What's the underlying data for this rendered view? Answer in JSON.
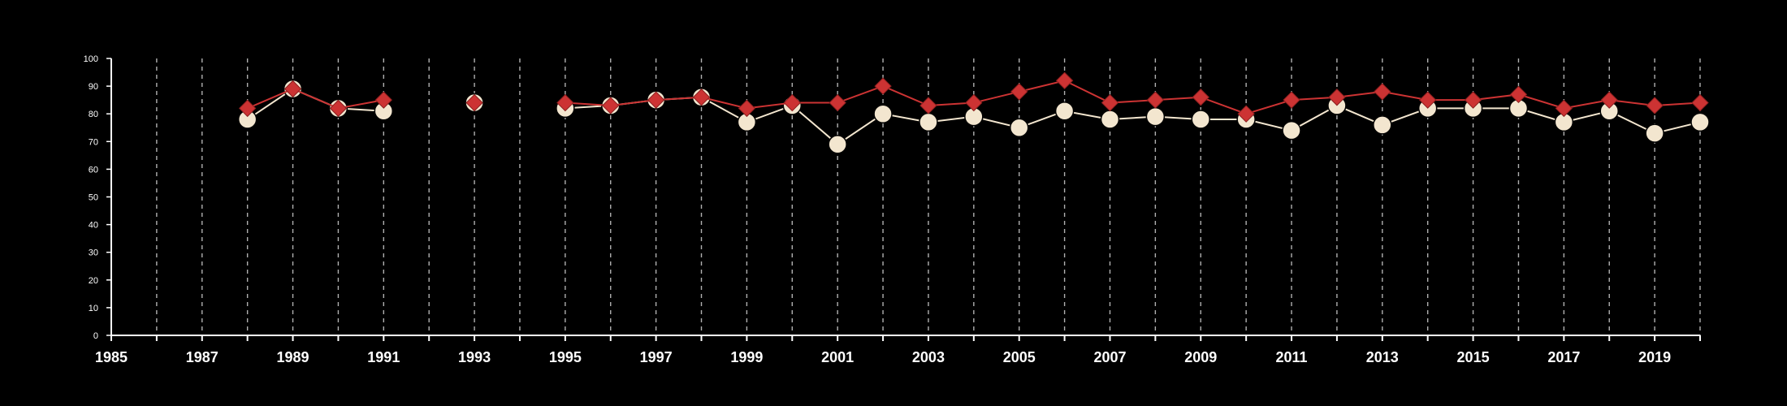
{
  "chart_data": {
    "type": "line",
    "title": "",
    "xlabel": "",
    "ylabel": "",
    "xlim": [
      1985,
      2020
    ],
    "ylim": [
      0,
      100
    ],
    "x_ticks": [
      1985,
      1987,
      1989,
      1991,
      1993,
      1995,
      1997,
      1999,
      2001,
      2003,
      2005,
      2007,
      2009,
      2011,
      2013,
      2015,
      2017,
      2019
    ],
    "y_ticks": [
      0,
      10,
      20,
      30,
      40,
      50,
      60,
      70,
      80,
      90,
      100
    ],
    "grid": "vertical-dashed",
    "legend": "none",
    "x": [
      1985,
      1986,
      1987,
      1988,
      1989,
      1990,
      1991,
      1992,
      1993,
      1994,
      1995,
      1996,
      1997,
      1998,
      1999,
      2000,
      2001,
      2002,
      2003,
      2004,
      2005,
      2006,
      2007,
      2008,
      2009,
      2010,
      2011,
      2012,
      2013,
      2014,
      2015,
      2016,
      2017,
      2018,
      2019,
      2020
    ],
    "series": [
      {
        "marker": "circle",
        "color": "#f3e6cf",
        "values": [
          null,
          null,
          null,
          78,
          89,
          82,
          81,
          null,
          84,
          null,
          82,
          83,
          85,
          86,
          77,
          83,
          69,
          80,
          77,
          79,
          75,
          81,
          78,
          79,
          78,
          78,
          74,
          83,
          76,
          82,
          82,
          82,
          77,
          81,
          73,
          77
        ]
      },
      {
        "marker": "diamond",
        "color": "#cc3333",
        "values": [
          null,
          null,
          null,
          82,
          89,
          82,
          85,
          null,
          84,
          null,
          84,
          83,
          85,
          86,
          82,
          84,
          84,
          90,
          83,
          84,
          88,
          92,
          84,
          85,
          86,
          80,
          85,
          86,
          88,
          85,
          85,
          87,
          82,
          85,
          83,
          84
        ]
      }
    ]
  }
}
